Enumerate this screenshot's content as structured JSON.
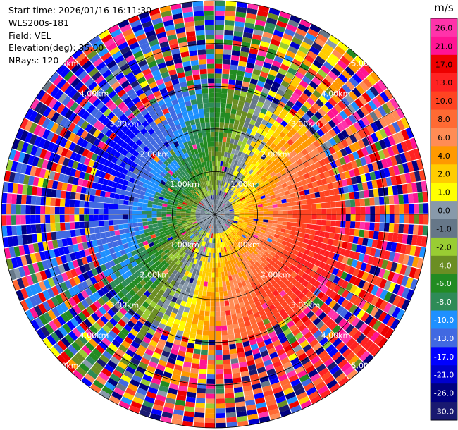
{
  "header": {
    "start_time": "Start time: 2026/01/16 16:11:30",
    "instrument": "WLS200s-181",
    "field": "Field: VEL",
    "elevation": "Elevation(deg): 35.00",
    "nrays": "NRays: 120"
  },
  "colorbar": {
    "unit": "m/s",
    "tick_labels": [
      "26.0",
      "21.0",
      "17.0",
      "13.0",
      "10.0",
      "8.0",
      "6.0",
      "4.0",
      "2.0",
      "1.0",
      "0.0",
      "-1.0",
      "-2.0",
      "-4.0",
      "-6.0",
      "-8.0",
      "-10.0",
      "-13.0",
      "-17.0",
      "-21.0",
      "-26.0",
      "-30.0"
    ],
    "colors": [
      "#ff33aa",
      "#ff1493",
      "#ee0000",
      "#ff2222",
      "#ff4422",
      "#ff6a33",
      "#ff8c55",
      "#ff9900",
      "#ffcc00",
      "#ffff00",
      "#8899aa",
      "#667788",
      "#99cc33",
      "#6b8e23",
      "#228b22",
      "#2e8b57",
      "#1e90ff",
      "#4169e1",
      "#0000ff",
      "#0000cd",
      "#000080",
      "#191970"
    ]
  },
  "chart_data": {
    "type": "heatmap",
    "projection": "polar-ppi",
    "field": "VEL",
    "unit": "m/s",
    "nrays": 120,
    "range_unit": "km",
    "max_range_km": 5.0,
    "range_rings_km": [
      1.0,
      2.0,
      3.0,
      4.0,
      5.0
    ],
    "ring_labels": [
      "1.00km",
      "2.00km",
      "3.00km",
      "4.00km",
      "5.00km"
    ],
    "color_scale": [
      -30,
      -26,
      -21,
      -17,
      -13,
      -10,
      -8,
      -6,
      -4,
      -2,
      -1,
      0,
      1,
      2,
      4,
      6,
      8,
      10,
      13,
      17,
      21,
      26
    ],
    "pattern": {
      "description_values": "Coherent dipole of radial velocity within ~3 km; outward flow (positive) toward east-southeast, inward flow (negative) toward west-northwest; values near 0 close to origin; beyond ~3 km values are noisy spanning full scale.",
      "max_inbound_ms": -17,
      "max_outbound_ms": 17,
      "coherent_range_km": 3.0
    }
  }
}
